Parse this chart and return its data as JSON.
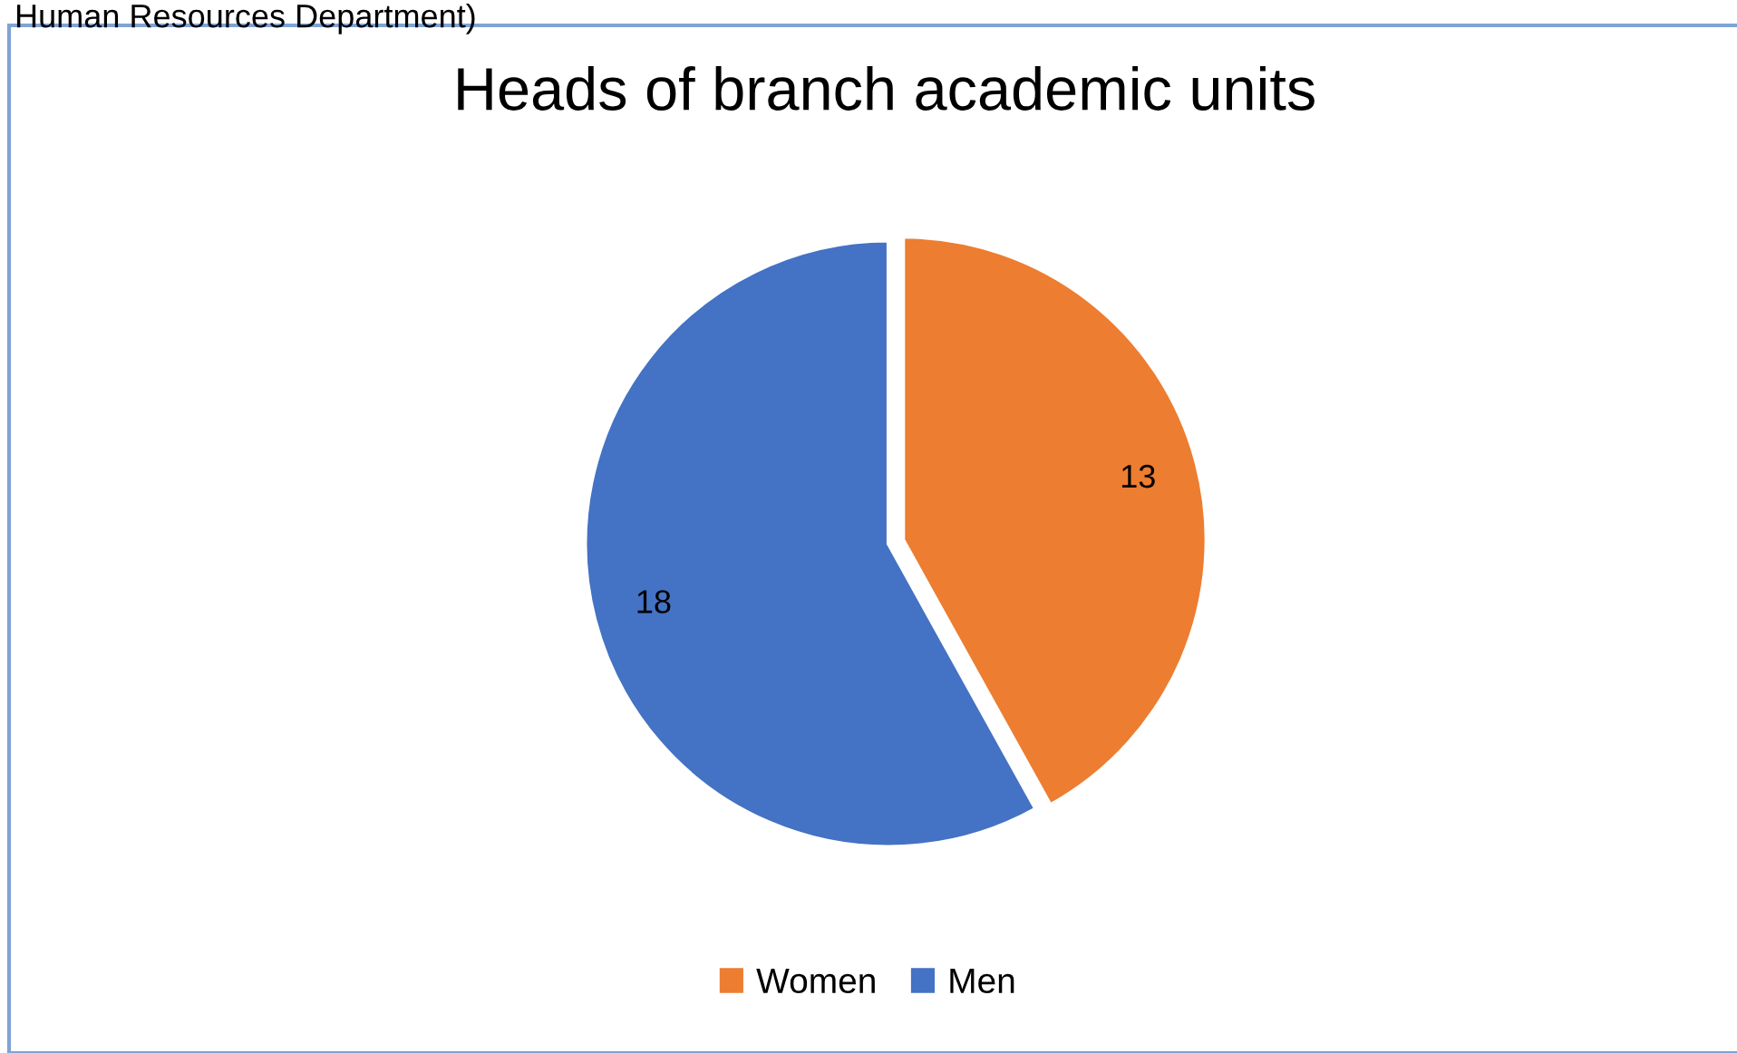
{
  "chart_data": {
    "type": "pie",
    "title": "Heads of branch academic units",
    "categories": [
      "Women",
      "Men"
    ],
    "values": [
      13,
      18
    ],
    "colors": [
      "#ed7d31",
      "#4472c4"
    ],
    "data_labels": true,
    "legend": "bottom",
    "annotations": [
      "Human Resources Department)"
    ]
  }
}
